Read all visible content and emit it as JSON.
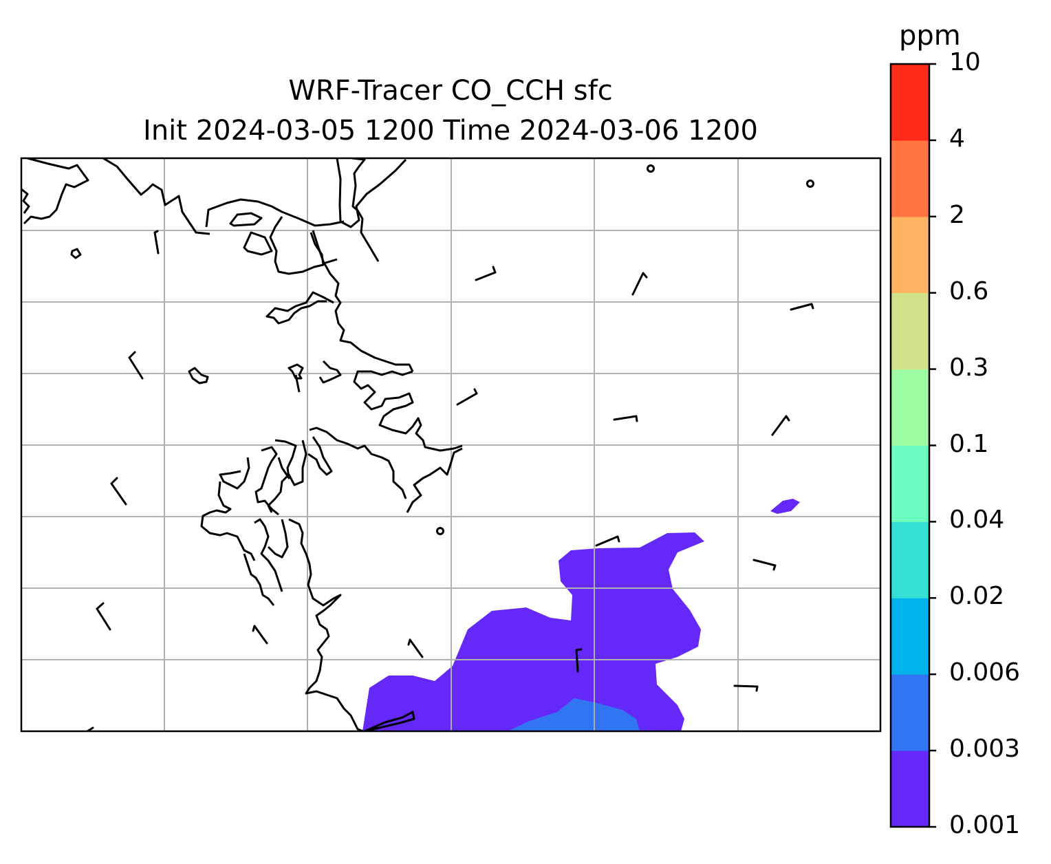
{
  "title": {
    "line1": "WRF-Tracer CO_CCH sfc",
    "line2": "Init 2024-03-05 1200 Time 2024-03-06 1200"
  },
  "colorbar": {
    "unit": "ppm",
    "levels": [
      "0.001",
      "0.003",
      "0.006",
      "0.02",
      "0.04",
      "0.1",
      "0.3",
      "0.6",
      "2",
      "4",
      "10"
    ],
    "colors": [
      "#6428f8",
      "#3275f3",
      "#00b3ea",
      "#33e0d4",
      "#6bfcc0",
      "#9efca3",
      "#d0e38a",
      "#ffb464",
      "#ff7440",
      "#ff2b1a"
    ]
  },
  "map": {
    "gridlines": true,
    "coastline_color": "#000000",
    "grid_color": "#b0b0b0",
    "wind_barbs": true
  }
}
